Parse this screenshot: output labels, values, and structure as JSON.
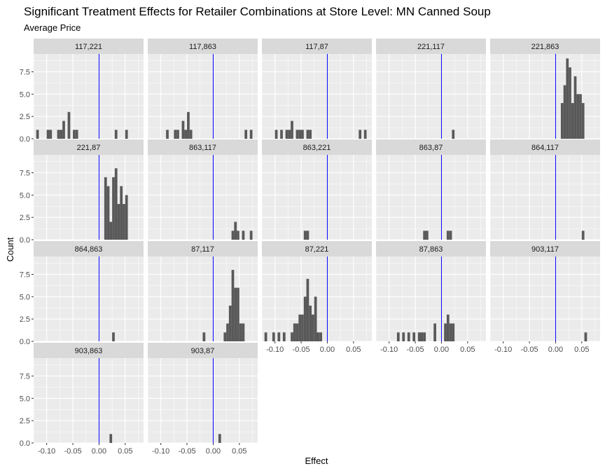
{
  "chart_data": {
    "type": "histogram",
    "title": "Significant Treatment Effects for Retailer Combinations at Store Level: MN Canned Soup",
    "subtitle": "Average Price",
    "xlabel": "Effect",
    "ylabel": "Count",
    "xlim": [
      -0.125,
      0.085
    ],
    "ylim": [
      0,
      9.5
    ],
    "x_ticks": [
      -0.1,
      -0.05,
      0.0,
      0.05
    ],
    "x_tick_labels": [
      "-0.10",
      "-0.05",
      "0.00",
      "0.05"
    ],
    "y_ticks": [
      0,
      2.5,
      5,
      7.5
    ],
    "y_tick_labels": [
      "0.0",
      "2.5",
      "5.0",
      "7.5"
    ],
    "vline_x": 0,
    "bin_width": 0.005,
    "colors": {
      "bar": "#595959",
      "vline": "#0000ff",
      "panel_bg": "#ebebeb",
      "strip_bg": "#d9d9d9",
      "grid": "#ffffff"
    },
    "panels": [
      {
        "label": "117,221",
        "bins": [
          [
            -0.12,
            1
          ],
          [
            -0.1,
            1
          ],
          [
            -0.095,
            1
          ],
          [
            -0.08,
            1
          ],
          [
            -0.075,
            1
          ],
          [
            -0.07,
            2
          ],
          [
            -0.06,
            3
          ],
          [
            -0.05,
            1
          ],
          [
            -0.045,
            1
          ],
          [
            0.03,
            1
          ],
          [
            0.05,
            1
          ]
        ]
      },
      {
        "label": "117,863",
        "bins": [
          [
            -0.09,
            1
          ],
          [
            -0.075,
            1
          ],
          [
            -0.07,
            1
          ],
          [
            -0.06,
            2
          ],
          [
            -0.055,
            1
          ],
          [
            -0.05,
            3
          ],
          [
            -0.045,
            1
          ],
          [
            0.06,
            1
          ],
          [
            0.07,
            1
          ]
        ]
      },
      {
        "label": "117,87",
        "bins": [
          [
            -0.1,
            1
          ],
          [
            -0.09,
            1
          ],
          [
            -0.08,
            1
          ],
          [
            -0.075,
            1
          ],
          [
            -0.07,
            2
          ],
          [
            -0.06,
            1
          ],
          [
            -0.055,
            1
          ],
          [
            -0.05,
            1
          ],
          [
            -0.04,
            1
          ],
          [
            -0.035,
            1
          ],
          [
            0.06,
            1
          ],
          [
            0.07,
            1
          ]
        ]
      },
      {
        "label": "221,117",
        "bins": [
          [
            0.02,
            1
          ]
        ]
      },
      {
        "label": "221,863",
        "bins": [
          [
            0.01,
            4
          ],
          [
            0.015,
            6
          ],
          [
            0.02,
            9
          ],
          [
            0.025,
            8
          ],
          [
            0.03,
            4
          ],
          [
            0.035,
            7
          ],
          [
            0.04,
            5
          ],
          [
            0.045,
            5
          ],
          [
            0.05,
            4
          ]
        ]
      },
      {
        "label": "221,87",
        "bins": [
          [
            0.01,
            7
          ],
          [
            0.015,
            6
          ],
          [
            0.02,
            2
          ],
          [
            0.025,
            7
          ],
          [
            0.03,
            8
          ],
          [
            0.035,
            4
          ],
          [
            0.04,
            6
          ],
          [
            0.045,
            4
          ],
          [
            0.05,
            5
          ]
        ]
      },
      {
        "label": "863,117",
        "bins": [
          [
            0.035,
            1
          ],
          [
            0.04,
            2
          ],
          [
            0.045,
            1
          ],
          [
            0.055,
            1
          ],
          [
            0.07,
            1
          ]
        ]
      },
      {
        "label": "863,221",
        "bins": [
          [
            -0.045,
            1
          ],
          [
            -0.04,
            1
          ]
        ]
      },
      {
        "label": "863,87",
        "bins": [
          [
            -0.035,
            1
          ],
          [
            -0.03,
            1
          ],
          [
            0.01,
            1
          ],
          [
            0.015,
            1
          ]
        ]
      },
      {
        "label": "864,117",
        "bins": [
          [
            0.05,
            1
          ]
        ]
      },
      {
        "label": "864,863",
        "bins": [
          [
            0.025,
            1
          ]
        ]
      },
      {
        "label": "87,117",
        "bins": [
          [
            -0.02,
            1
          ],
          [
            0.02,
            1
          ],
          [
            0.025,
            2
          ],
          [
            0.03,
            4
          ],
          [
            0.035,
            8
          ],
          [
            0.04,
            6
          ],
          [
            0.045,
            6
          ],
          [
            0.05,
            2
          ],
          [
            0.055,
            2
          ]
        ]
      },
      {
        "label": "87,221",
        "bins": [
          [
            -0.12,
            1
          ],
          [
            -0.105,
            1
          ],
          [
            -0.095,
            1
          ],
          [
            -0.085,
            1
          ],
          [
            -0.07,
            1
          ],
          [
            -0.065,
            2
          ],
          [
            -0.06,
            2
          ],
          [
            -0.055,
            3
          ],
          [
            -0.05,
            3
          ],
          [
            -0.045,
            5
          ],
          [
            -0.04,
            7
          ],
          [
            -0.035,
            4
          ],
          [
            -0.03,
            3
          ],
          [
            -0.025,
            5
          ],
          [
            -0.02,
            1
          ],
          [
            -0.015,
            1
          ]
        ]
      },
      {
        "label": "87,863",
        "bins": [
          [
            -0.085,
            1
          ],
          [
            -0.075,
            1
          ],
          [
            -0.065,
            1
          ],
          [
            -0.055,
            1
          ],
          [
            -0.045,
            1
          ],
          [
            -0.04,
            1
          ],
          [
            -0.035,
            1
          ],
          [
            -0.015,
            2
          ],
          [
            0.005,
            2
          ],
          [
            0.01,
            3
          ],
          [
            0.015,
            2
          ],
          [
            0.02,
            2
          ]
        ]
      },
      {
        "label": "903,117",
        "bins": [
          [
            0.055,
            1
          ]
        ]
      },
      {
        "label": "903,863",
        "bins": [
          [
            0.02,
            1
          ]
        ]
      },
      {
        "label": "903,87",
        "bins": [
          [
            0.01,
            1
          ]
        ]
      }
    ]
  }
}
